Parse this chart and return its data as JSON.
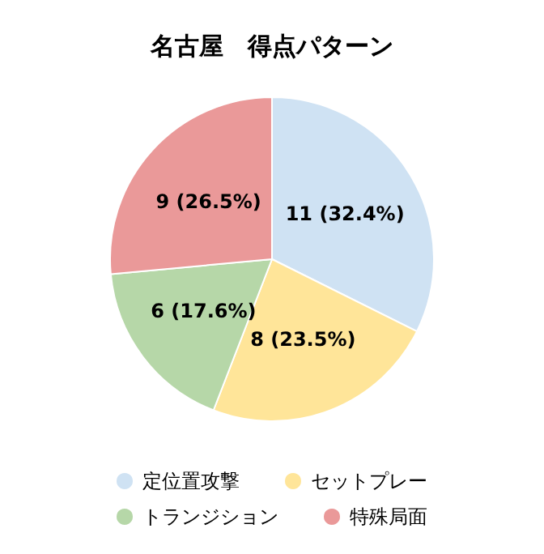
{
  "chart_data": {
    "type": "pie",
    "title": "名古屋　得点パターン",
    "categories": [
      "定位置攻撃",
      "セットプレー",
      "トランジション",
      "特殊局面"
    ],
    "values": [
      11,
      8,
      6,
      9
    ],
    "value_labels": [
      "11 (32.4%)",
      "8 (23.5%)",
      "6 (17.6%)",
      "9 (26.5%)"
    ],
    "colors": [
      "#cfe2f3",
      "#ffe599",
      "#b6d7a8",
      "#ea9999"
    ],
    "legend": "bottom"
  }
}
